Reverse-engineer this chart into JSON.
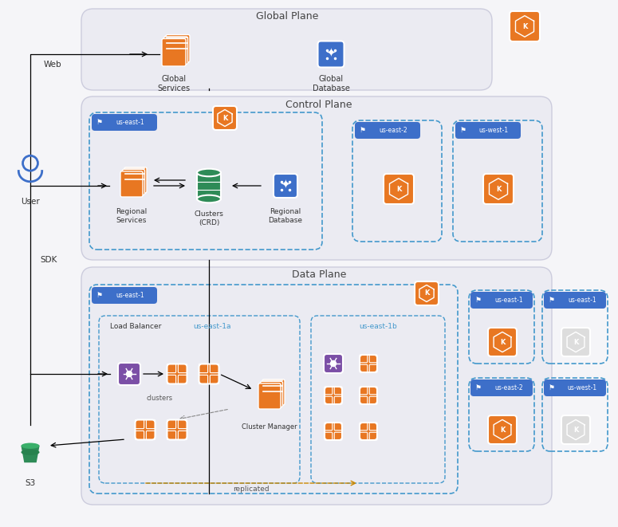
{
  "bg_color": "#f5f5f8",
  "light_bg": "#ebebf2",
  "panel_stroke": "#ccccdd",
  "orange": "#e87722",
  "blue": "#3d6fc9",
  "purple": "#7b4fa6",
  "green": "#2e8b57",
  "dashed_blue": "#4499cc",
  "white": "#ffffff",
  "text_dark": "#444444",
  "global_plane_label": "Global Plane",
  "control_plane_label": "Control Plane",
  "data_plane_label": "Data Plane"
}
